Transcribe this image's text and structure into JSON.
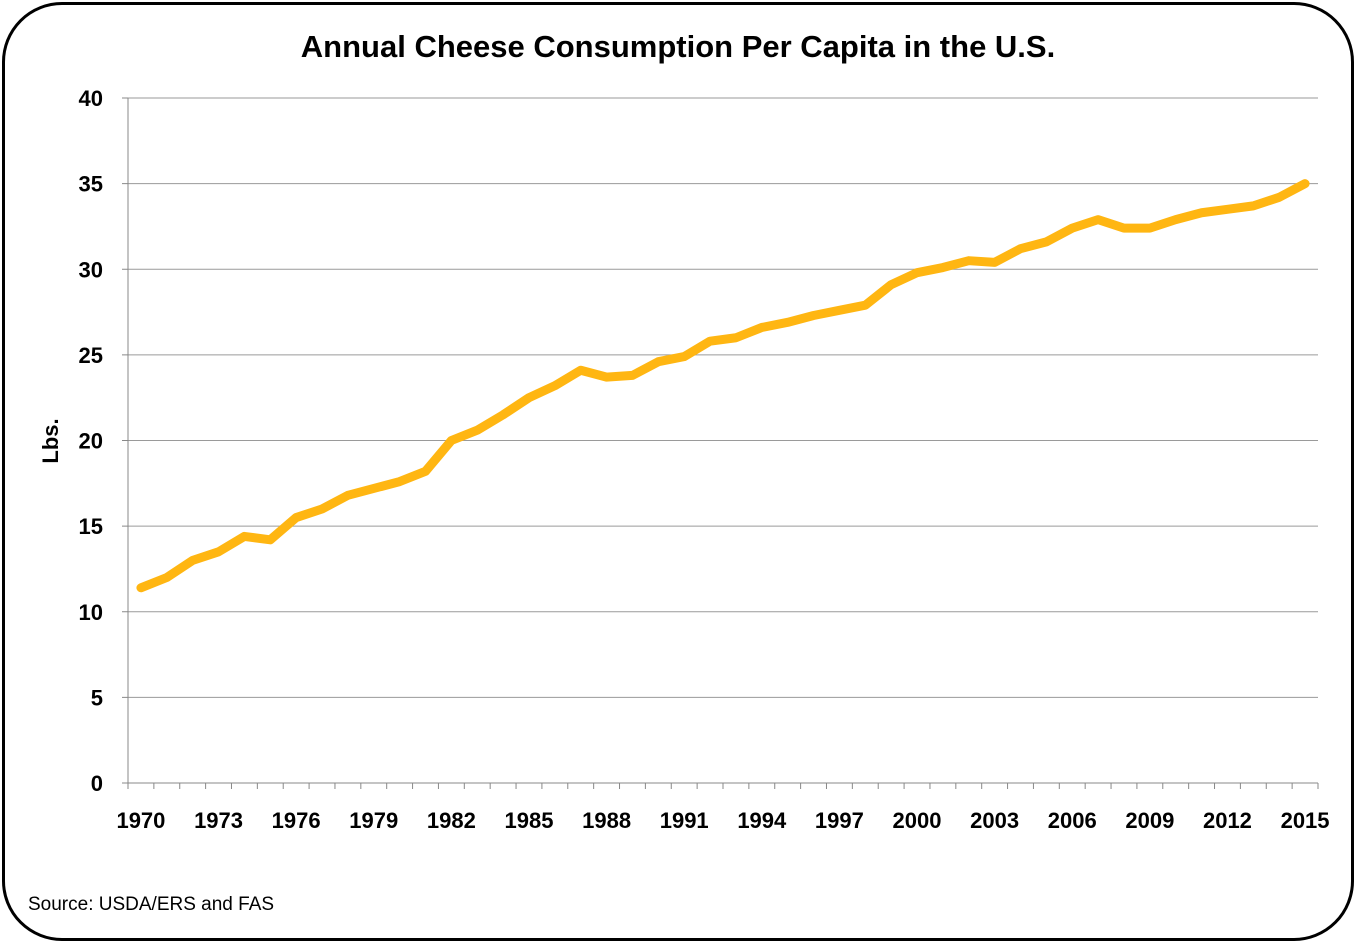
{
  "chart_data": {
    "type": "line",
    "title": "Annual Cheese Consumption Per Capita in the U.S.",
    "xlabel": "",
    "ylabel": "Lbs.",
    "ylim": [
      0,
      40
    ],
    "yticks": [
      "0",
      "5",
      "10",
      "15",
      "20",
      "25",
      "30",
      "35",
      "40"
    ],
    "xtick_labels": [
      "1970",
      "1973",
      "1976",
      "1979",
      "1982",
      "1985",
      "1988",
      "1991",
      "1994",
      "1997",
      "2000",
      "2003",
      "2006",
      "2009",
      "2012",
      "2015"
    ],
    "grid": "horizontal",
    "legend": "none",
    "color": "#FFB612",
    "x": [
      1970,
      1971,
      1972,
      1973,
      1974,
      1975,
      1976,
      1977,
      1978,
      1979,
      1980,
      1981,
      1982,
      1983,
      1984,
      1985,
      1986,
      1987,
      1988,
      1989,
      1990,
      1991,
      1992,
      1993,
      1994,
      1995,
      1996,
      1997,
      1998,
      1999,
      2000,
      2001,
      2002,
      2003,
      2004,
      2005,
      2006,
      2007,
      2008,
      2009,
      2010,
      2011,
      2012,
      2013,
      2014,
      2015
    ],
    "values": [
      11.4,
      12.0,
      13.0,
      13.5,
      14.4,
      14.2,
      15.5,
      16.0,
      16.8,
      17.2,
      17.6,
      18.2,
      20.0,
      20.6,
      21.5,
      22.5,
      23.2,
      24.1,
      23.7,
      23.8,
      24.6,
      24.9,
      25.8,
      26.0,
      26.6,
      26.9,
      27.3,
      27.6,
      27.9,
      29.1,
      29.8,
      30.1,
      30.5,
      30.4,
      31.2,
      31.6,
      32.4,
      32.9,
      32.4,
      32.4,
      32.9,
      33.3,
      33.5,
      33.7,
      34.2,
      35.0
    ],
    "source": "Source: USDA/ERS and FAS"
  }
}
